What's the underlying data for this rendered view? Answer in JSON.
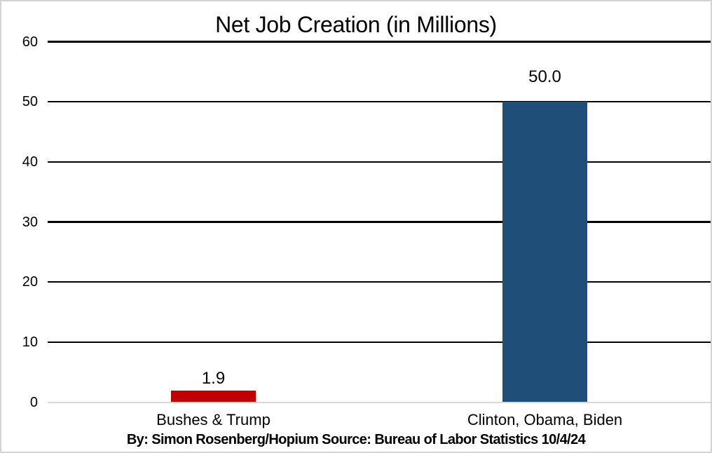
{
  "chart_data": {
    "type": "bar",
    "title": "Net Job Creation (in Millions)",
    "categories": [
      "Bushes & Trump",
      "Clinton, Obama, Biden"
    ],
    "values": [
      1.9,
      50.0
    ],
    "value_labels": [
      "1.9",
      "50.0"
    ],
    "series_colors": [
      "#c00000",
      "#1f4e79"
    ],
    "ylim": [
      0,
      60
    ],
    "yticks": [
      60,
      50,
      40,
      30,
      20,
      10,
      0
    ],
    "grid": true,
    "gridline_color": "#000000",
    "zero_line_color": "#d9d9d9",
    "legend_position": "none",
    "footer": "By: Simon Rosenberg/Hopium Source: Bureau of Labor Statistics 10/4/24"
  }
}
